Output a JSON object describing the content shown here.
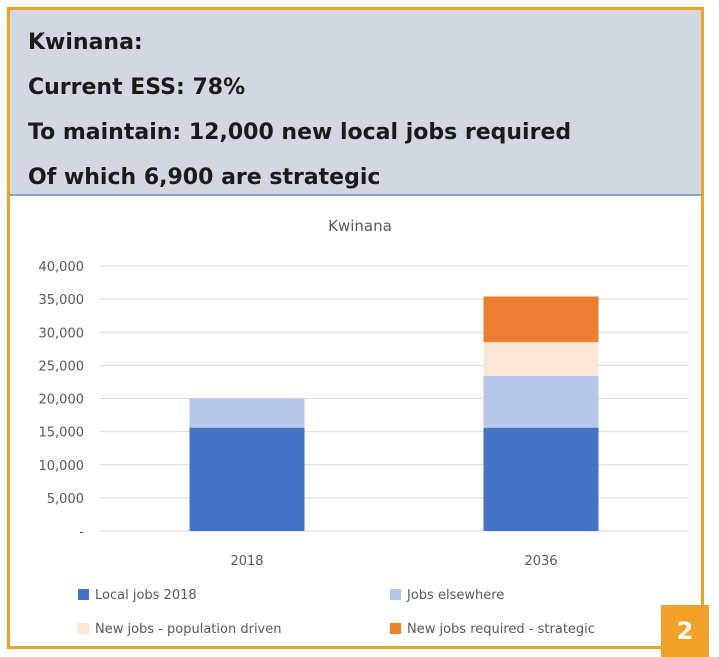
{
  "header": {
    "line1": "Kwinana:",
    "line2": "Current ESS: 78%",
    "line3": "To maintain: 12,000 new local jobs required",
    "line4": "Of which 6,900 are strategic"
  },
  "badge": "2",
  "chart_data": {
    "type": "bar",
    "stacked": true,
    "title": "Kwinana",
    "categories": [
      "2018",
      "2036"
    ],
    "ylim": [
      0,
      40000
    ],
    "yticks": [
      {
        "value": 0,
        "label": "-"
      },
      {
        "value": 5000,
        "label": "5,000"
      },
      {
        "value": 10000,
        "label": "10,000"
      },
      {
        "value": 15000,
        "label": "15,000"
      },
      {
        "value": 20000,
        "label": "20,000"
      },
      {
        "value": 25000,
        "label": "25,000"
      },
      {
        "value": 30000,
        "label": "30,000"
      },
      {
        "value": 35000,
        "label": "35,000"
      },
      {
        "value": 40000,
        "label": "40,000"
      }
    ],
    "grid": true,
    "legend_position": "bottom",
    "series": [
      {
        "name": "Local jobs 2018",
        "color": "#4472c4",
        "values": [
          15600,
          15600
        ]
      },
      {
        "name": "Jobs elsewhere",
        "color": "#b4c7e7",
        "values": [
          4400,
          7800
        ]
      },
      {
        "name": "New jobs - population driven",
        "color": "#fbe5d6",
        "values": [
          0,
          5100
        ]
      },
      {
        "name": "New jobs required - strategic",
        "color": "#ed7d31",
        "values": [
          0,
          6900
        ]
      }
    ]
  }
}
